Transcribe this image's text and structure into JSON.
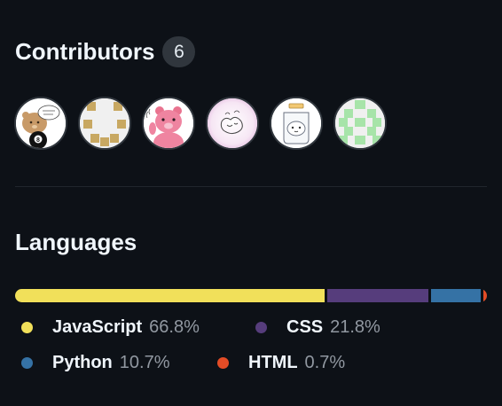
{
  "contributors": {
    "title": "Contributors",
    "count": "6",
    "avatars": [
      {
        "name": "contributor-avatar-1",
        "text": "8"
      },
      {
        "name": "contributor-avatar-2"
      },
      {
        "name": "contributor-avatar-3"
      },
      {
        "name": "contributor-avatar-4"
      },
      {
        "name": "contributor-avatar-5"
      },
      {
        "name": "contributor-avatar-6"
      }
    ]
  },
  "languages": {
    "title": "Languages",
    "items": [
      {
        "name": "JavaScript",
        "percent": "66.8%",
        "value": 66.8,
        "color": "#f1e05a"
      },
      {
        "name": "CSS",
        "percent": "21.8%",
        "value": 21.8,
        "color": "#563d7c"
      },
      {
        "name": "Python",
        "percent": "10.7%",
        "value": 10.7,
        "color": "#3572a5"
      },
      {
        "name": "HTML",
        "percent": "0.7%",
        "value": 0.7,
        "color": "#e34c26"
      }
    ]
  }
}
